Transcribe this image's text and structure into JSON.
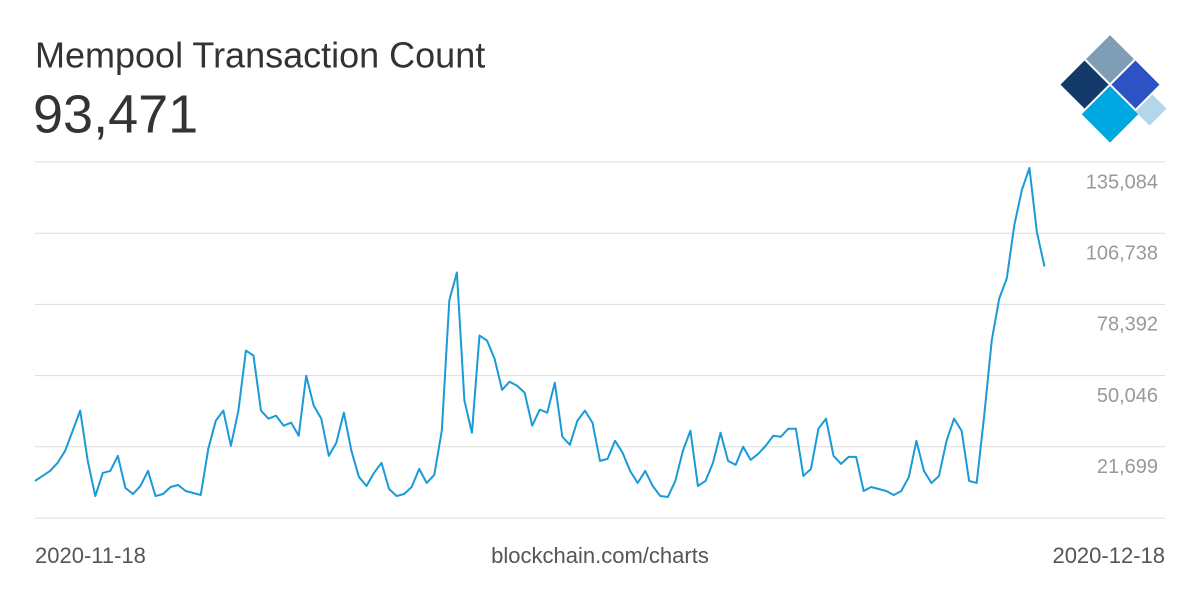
{
  "chart_data": {
    "type": "line",
    "title": "Mempool Transaction Count",
    "headline": "93,471",
    "source": "blockchain.com/charts",
    "color": "#1a9ad6",
    "grid": true,
    "x": [
      0,
      0.2,
      0.4,
      0.6,
      0.8,
      1,
      1.2,
      1.4,
      1.6,
      1.8,
      2,
      2.2,
      2.4,
      2.6,
      2.8,
      3,
      3.2,
      3.4,
      3.6,
      3.8,
      4,
      4.2,
      4.4,
      4.6,
      4.8,
      5,
      5.2,
      5.4,
      5.6,
      5.8,
      6,
      6.2,
      6.4,
      6.6,
      6.8,
      7,
      7.2,
      7.4,
      7.6,
      7.8,
      8,
      8.2,
      8.4,
      8.6,
      8.8,
      9,
      9.2,
      9.4,
      9.6,
      9.8,
      10,
      10.2,
      10.4,
      10.6,
      10.8,
      11,
      11.2,
      11.4,
      11.6,
      11.8,
      12,
      12.2,
      12.4,
      12.6,
      12.8,
      13,
      13.2,
      13.4,
      13.6,
      13.8,
      14,
      14.2,
      14.4,
      14.6,
      14.8,
      15,
      15.2,
      15.4,
      15.6,
      15.8,
      16,
      16.2,
      16.4,
      16.6,
      16.8,
      17,
      17.2,
      17.4,
      17.6,
      17.8,
      18,
      18.2,
      18.4,
      18.6,
      18.8,
      19,
      19.2,
      19.4,
      19.6,
      19.8,
      20,
      20.2,
      20.4,
      20.6,
      20.8,
      21,
      21.2,
      21.4,
      21.6,
      21.8,
      22,
      22.2,
      22.4,
      22.6,
      22.8,
      23,
      23.2,
      23.4,
      23.6,
      23.8,
      24,
      24.2,
      24.4,
      24.6,
      24.8,
      25,
      25.2,
      25.4,
      25.6,
      25.8,
      26,
      26.2,
      26.4,
      26.6,
      26.8
    ],
    "values": [
      8100,
      10100,
      12100,
      15300,
      20100,
      28100,
      36100,
      16100,
      2100,
      11300,
      12100,
      18100,
      5300,
      2900,
      6100,
      12100,
      2100,
      2900,
      5700,
      6500,
      4100,
      3300,
      2500,
      20900,
      32100,
      36100,
      22100,
      36100,
      60000,
      58000,
      36100,
      32900,
      34100,
      30100,
      31300,
      26100,
      50000,
      38100,
      32900,
      18100,
      23300,
      35300,
      20100,
      9700,
      6100,
      11300,
      15300,
      4900,
      2100,
      2900,
      5700,
      12900,
      7300,
      10500,
      28100,
      80000,
      91100,
      40100,
      27300,
      66000,
      64000,
      56800,
      44400,
      47600,
      46000,
      43200,
      30100,
      36500,
      35300,
      47200,
      25700,
      22500,
      32100,
      36100,
      31300,
      16100,
      16900,
      24100,
      19300,
      12100,
      7300,
      12100,
      6100,
      2100,
      1700,
      8100,
      20100,
      28100,
      6100,
      8100,
      15300,
      27300,
      16100,
      14500,
      21700,
      16500,
      18900,
      22100,
      26100,
      25700,
      28900,
      28900,
      10100,
      12900,
      28900,
      32900,
      18100,
      14900,
      17700,
      17700,
      4100,
      5700,
      4900,
      4100,
      2500,
      4100,
      9700,
      24100,
      12100,
      7300,
      10100,
      24100,
      32900,
      28100,
      8100,
      7300,
      34100,
      64000,
      80800,
      88800,
      110000,
      123900,
      132700,
      107100,
      93471
    ],
    "xlim": [
      0,
      30
    ],
    "xticks": [
      {
        "value": 0,
        "label": "2020-11-18"
      },
      {
        "value": 30,
        "label": "2020-12-18"
      }
    ],
    "ylim": [
      -6647,
      135084
    ],
    "yticks": [
      {
        "value": 21699,
        "label": "21,699"
      },
      {
        "value": 50046,
        "label": "50,046"
      },
      {
        "value": 78392,
        "label": "78,392"
      },
      {
        "value": 106738,
        "label": "106,738"
      },
      {
        "value": 135084,
        "label": "135,084"
      }
    ]
  }
}
